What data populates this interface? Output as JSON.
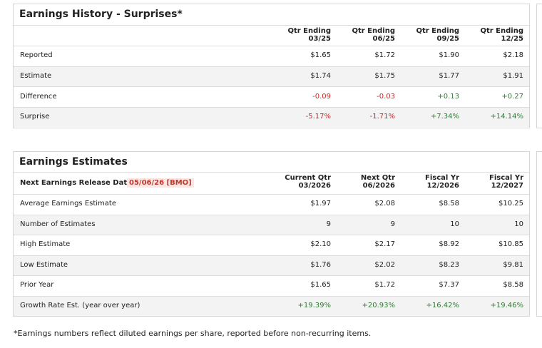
{
  "history": {
    "title": "Earnings History - Surprises*",
    "headers": [
      [
        "Qtr Ending",
        "03/25"
      ],
      [
        "Qtr Ending",
        "06/25"
      ],
      [
        "Qtr Ending",
        "09/25"
      ],
      [
        "Qtr Ending",
        "12/25"
      ]
    ],
    "rows": [
      {
        "label": "Reported",
        "values": [
          "$1.65",
          "$1.72",
          "$1.90",
          "$2.18"
        ]
      },
      {
        "label": "Estimate",
        "values": [
          "$1.74",
          "$1.75",
          "$1.77",
          "$1.91"
        ]
      },
      {
        "label": "Difference",
        "values": [
          "-0.09",
          "-0.03",
          "+0.13",
          "+0.27"
        ]
      },
      {
        "label": "Surprise",
        "values": [
          "-5.17%",
          "-1.71%",
          "+7.34%",
          "+14.14%"
        ]
      }
    ]
  },
  "estimates": {
    "title": "Earnings Estimates",
    "release_label": "Next Earnings Release Date -",
    "release_date": "05/06/26 [BMO]",
    "headers": [
      [
        "Current Qtr",
        "03/2026"
      ],
      [
        "Next Qtr",
        "06/2026"
      ],
      [
        "Fiscal Yr",
        "12/2026"
      ],
      [
        "Fiscal Yr",
        "12/2027"
      ]
    ],
    "rows": [
      {
        "label": "Average Earnings Estimate",
        "values": [
          "$1.97",
          "$2.08",
          "$8.58",
          "$10.25"
        ]
      },
      {
        "label": "Number of Estimates",
        "values": [
          "9",
          "9",
          "10",
          "10"
        ]
      },
      {
        "label": "High Estimate",
        "values": [
          "$2.10",
          "$2.17",
          "$8.92",
          "$10.85"
        ]
      },
      {
        "label": "Low Estimate",
        "values": [
          "$1.76",
          "$2.02",
          "$8.23",
          "$9.81"
        ]
      },
      {
        "label": "Prior Year",
        "values": [
          "$1.65",
          "$1.72",
          "$7.37",
          "$8.58"
        ]
      },
      {
        "label": "Growth Rate Est. (year over year)",
        "values": [
          "+19.39%",
          "+20.93%",
          "+16.42%",
          "+19.46%"
        ]
      }
    ]
  },
  "footnote": "*Earnings numbers reflect diluted earnings per share, reported before non-recurring items."
}
